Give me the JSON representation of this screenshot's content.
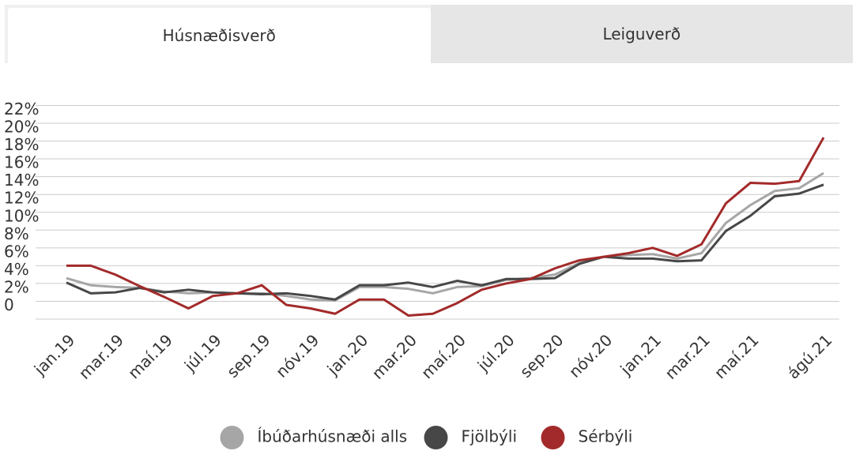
{
  "tabs": [
    "Húsnæðisverð",
    "Leiguverð"
  ],
  "chart_data": {
    "type": "line",
    "categories": [
      "jan.19",
      null,
      "mar.19",
      null,
      "maí.19",
      null,
      "júl.19",
      null,
      "sep.19",
      null,
      "nóv.19",
      null,
      "jan.20",
      null,
      "mar.20",
      null,
      "maí.20",
      null,
      "júl.20",
      null,
      "sep.20",
      null,
      "nóv.20",
      null,
      "jan.21",
      null,
      "mar.21",
      null,
      "maí.21",
      null,
      null,
      "ágú.21"
    ],
    "series": [
      {
        "name": "Íbúðarhúsnæði alls",
        "color": "#a6a6a6",
        "values": [
          2.6,
          1.8,
          1.6,
          1.5,
          1.1,
          0.9,
          1.0,
          0.9,
          0.9,
          0.6,
          0.2,
          0.1,
          1.6,
          1.6,
          1.4,
          0.9,
          1.6,
          1.7,
          2.4,
          2.6,
          3.0,
          4.3,
          5.0,
          5.2,
          5.3,
          4.8,
          5.4,
          8.8,
          10.8,
          12.4,
          12.7,
          14.4
        ]
      },
      {
        "name": "Fjölbýli",
        "color": "#474747",
        "values": [
          2.1,
          0.9,
          1.0,
          1.5,
          1.0,
          1.3,
          1.0,
          0.9,
          0.8,
          0.9,
          0.6,
          0.2,
          1.8,
          1.8,
          2.1,
          1.6,
          2.3,
          1.8,
          2.5,
          2.5,
          2.6,
          4.2,
          5.0,
          4.8,
          4.8,
          4.5,
          4.6,
          7.9,
          9.6,
          11.8,
          12.1,
          13.1
        ]
      },
      {
        "name": "Sérbýli",
        "color": "#a32a2a",
        "values": [
          4.0,
          4.0,
          3.0,
          1.7,
          0.5,
          -0.8,
          0.6,
          0.9,
          1.8,
          -0.4,
          -0.8,
          -1.4,
          0.2,
          0.2,
          -1.6,
          -1.4,
          -0.2,
          1.3,
          2.0,
          2.5,
          3.7,
          4.6,
          5.0,
          5.4,
          6.0,
          5.1,
          6.4,
          11.0,
          13.3,
          13.2,
          13.5,
          18.4
        ]
      }
    ],
    "ylim": [
      -2,
      22
    ],
    "yticks": [
      0,
      {
        "value": 2,
        "label": "2%"
      },
      {
        "value": 4,
        "label": "4%"
      },
      {
        "value": 6,
        "label": "6%"
      },
      {
        "value": 8,
        "label": "8%"
      },
      {
        "value": 10,
        "label": "10%"
      },
      {
        "value": 12,
        "label": "12%"
      },
      {
        "value": 14,
        "label": "14%"
      },
      {
        "value": 16,
        "label": "16%"
      },
      {
        "value": 18,
        "label": "18%"
      },
      {
        "value": 20,
        "label": "20%"
      },
      {
        "value": 22,
        "label": "22%"
      }
    ],
    "grid": true,
    "legend": "bottom"
  }
}
